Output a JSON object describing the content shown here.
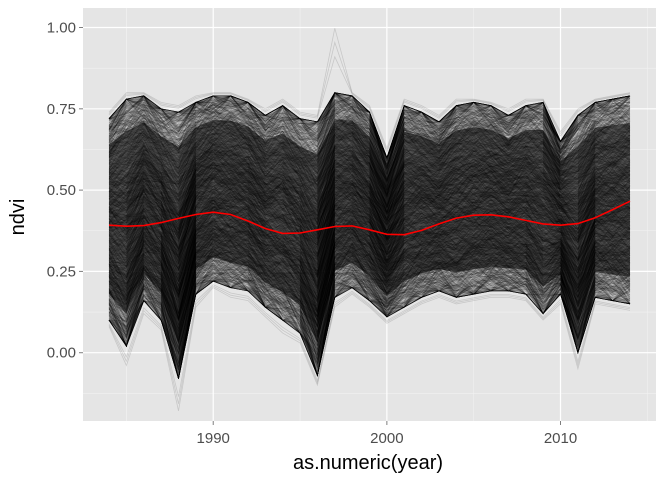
{
  "chart_data": {
    "type": "line",
    "title": "",
    "xlabel": "as.numeric(year)",
    "ylabel": "ndvi",
    "xlim": [
      1982.5,
      2015.5
    ],
    "ylim": [
      -0.21,
      1.06
    ],
    "x_ticks": [
      1990,
      2000,
      2010
    ],
    "x_tick_labels": [
      "1990",
      "2000",
      "2010"
    ],
    "y_ticks": [
      0.0,
      0.25,
      0.5,
      0.75,
      1.0
    ],
    "y_tick_labels": [
      "0.00",
      "0.25",
      "0.50",
      "0.75",
      "1.00"
    ],
    "grid": true,
    "background": "#e5e5e5",
    "individual_series_color": "#000000",
    "trend_color": "#ff0000",
    "individual_series_count": 2000,
    "envelope": {
      "x": [
        1984,
        1985,
        1986,
        1987,
        1988,
        1989,
        1990,
        1991,
        1992,
        1993,
        1994,
        1995,
        1996,
        1997,
        1998,
        1999,
        2000,
        2001,
        2002,
        2003,
        2004,
        2005,
        2006,
        2007,
        2008,
        2009,
        2010,
        2011,
        2012,
        2013,
        2014
      ],
      "upper": [
        0.72,
        0.78,
        0.79,
        0.75,
        0.74,
        0.77,
        0.79,
        0.79,
        0.77,
        0.73,
        0.76,
        0.72,
        0.71,
        0.8,
        0.79,
        0.74,
        0.6,
        0.76,
        0.74,
        0.71,
        0.76,
        0.77,
        0.76,
        0.73,
        0.76,
        0.77,
        0.65,
        0.73,
        0.77,
        0.78,
        0.79
      ],
      "lower": [
        0.1,
        0.02,
        0.16,
        0.1,
        -0.08,
        0.18,
        0.22,
        0.2,
        0.19,
        0.14,
        0.1,
        0.06,
        -0.07,
        0.17,
        0.2,
        0.16,
        0.11,
        0.14,
        0.17,
        0.19,
        0.17,
        0.18,
        0.19,
        0.19,
        0.18,
        0.12,
        0.18,
        0.0,
        0.17,
        0.16,
        0.15
      ],
      "outlier_low": [
        0.08,
        -0.04,
        0.12,
        0.07,
        -0.18,
        0.14,
        0.2,
        0.17,
        0.16,
        0.11,
        0.06,
        0.03,
        -0.1,
        0.14,
        0.18,
        0.14,
        0.09,
        0.12,
        0.15,
        0.17,
        0.15,
        0.16,
        0.17,
        0.17,
        0.16,
        0.1,
        0.15,
        -0.05,
        0.15,
        0.14,
        0.13
      ],
      "outlier_high": [
        0.74,
        0.8,
        0.8,
        0.77,
        0.76,
        0.79,
        0.8,
        0.8,
        0.78,
        0.75,
        0.78,
        0.74,
        0.73,
        1.0,
        0.8,
        0.76,
        0.63,
        0.78,
        0.76,
        0.73,
        0.78,
        0.78,
        0.77,
        0.75,
        0.78,
        0.78,
        0.68,
        0.75,
        0.78,
        0.79,
        0.8
      ]
    },
    "trend": {
      "name": "smooth",
      "x": [
        1984,
        1985,
        1986,
        1987,
        1988,
        1989,
        1990,
        1991,
        1992,
        1993,
        1994,
        1995,
        1996,
        1997,
        1998,
        1999,
        2000,
        2001,
        2002,
        2003,
        2004,
        2005,
        2006,
        2007,
        2008,
        2009,
        2010,
        2011,
        2012,
        2013,
        2014
      ],
      "y": [
        0.392,
        0.389,
        0.391,
        0.4,
        0.413,
        0.425,
        0.432,
        0.425,
        0.405,
        0.382,
        0.367,
        0.368,
        0.378,
        0.388,
        0.39,
        0.378,
        0.364,
        0.363,
        0.376,
        0.396,
        0.414,
        0.423,
        0.424,
        0.418,
        0.407,
        0.396,
        0.392,
        0.397,
        0.415,
        0.44,
        0.466
      ]
    }
  }
}
